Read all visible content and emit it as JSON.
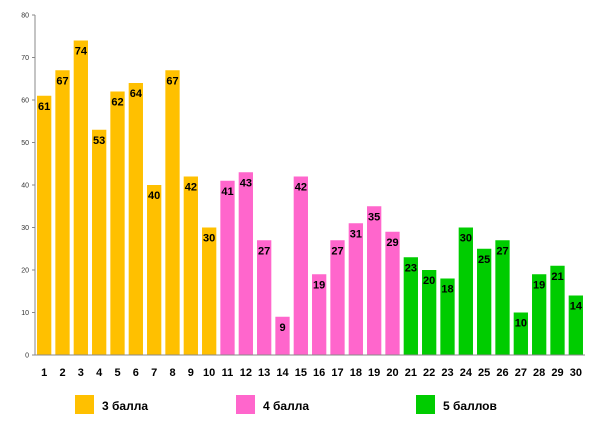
{
  "chart_data": {
    "type": "bar",
    "title": "",
    "xlabel": "",
    "ylabel": "",
    "ylim": [
      0,
      80
    ],
    "yticks": [
      0,
      10,
      20,
      30,
      40,
      50,
      60,
      70,
      80
    ],
    "grid": false,
    "legend_position": "bottom",
    "categories": [
      "1",
      "2",
      "3",
      "4",
      "5",
      "6",
      "7",
      "8",
      "9",
      "10",
      "11",
      "12",
      "13",
      "14",
      "15",
      "16",
      "17",
      "18",
      "19",
      "20",
      "21",
      "22",
      "23",
      "24",
      "25",
      "26",
      "27",
      "28",
      "29",
      "30"
    ],
    "values": [
      61,
      67,
      74,
      53,
      62,
      64,
      40,
      67,
      42,
      30,
      41,
      43,
      27,
      9,
      42,
      19,
      27,
      31,
      35,
      29,
      23,
      20,
      18,
      30,
      25,
      27,
      10,
      19,
      21,
      14
    ],
    "groups": [
      {
        "name": "3 балла",
        "color": "#FFC000",
        "from": 1,
        "to": 10
      },
      {
        "name": "4 балла",
        "color": "#FF66CC",
        "from": 11,
        "to": 20
      },
      {
        "name": "5 баллов",
        "color": "#00CC00",
        "from": 21,
        "to": 30
      }
    ]
  }
}
